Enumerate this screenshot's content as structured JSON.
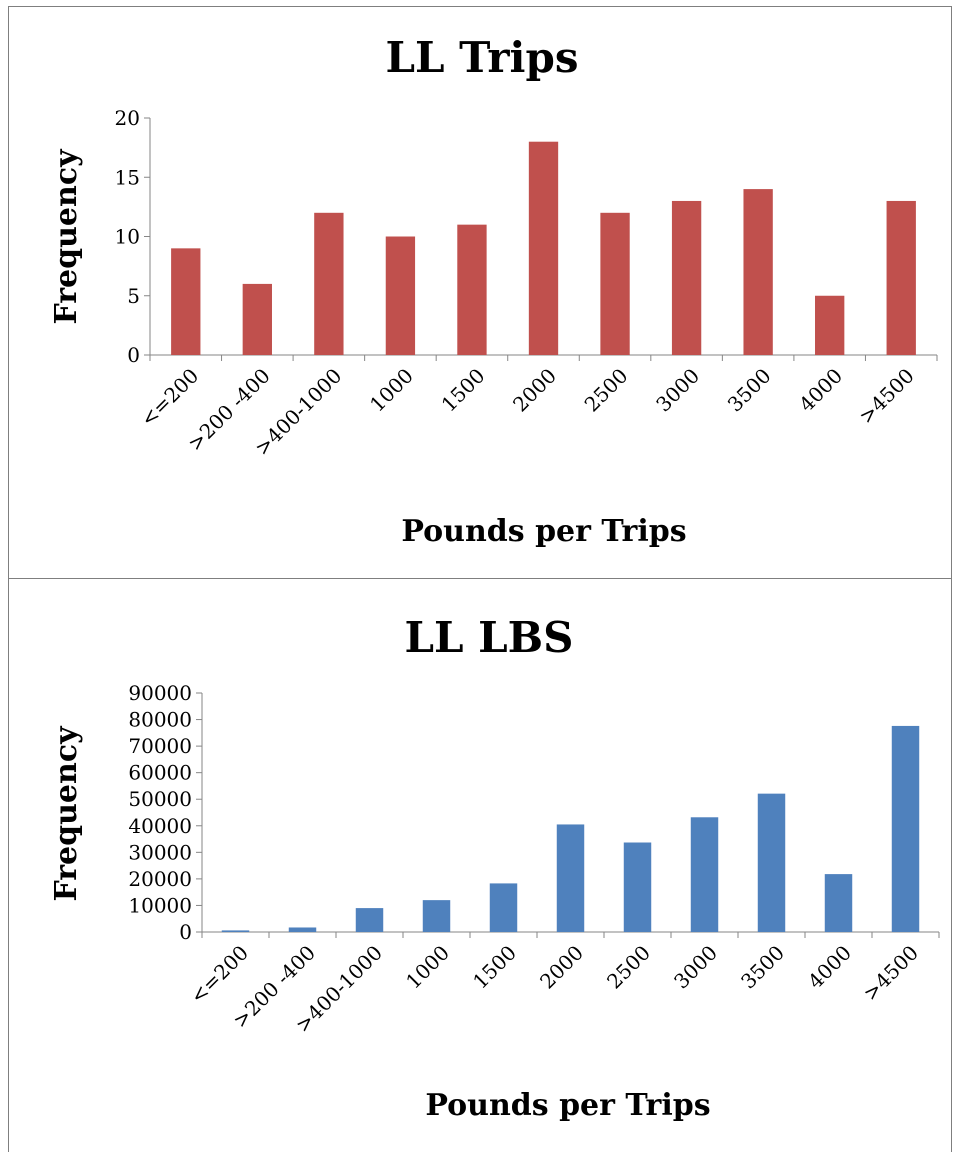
{
  "chart_data": [
    {
      "type": "bar",
      "title": "LL Trips",
      "xlabel": "Pounds per Trips",
      "ylabel": "Frequency",
      "categories": [
        "<=200",
        ">200 -400",
        ">400-1000",
        "1000",
        "1500",
        "2000",
        "2500",
        "3000",
        "3500",
        "4000",
        ">4500"
      ],
      "values": [
        9,
        6,
        12,
        10,
        11,
        18,
        12,
        13,
        14,
        5,
        13
      ],
      "ylim": [
        0,
        20
      ],
      "yticks": [
        0,
        5,
        10,
        15,
        20
      ],
      "color": "#c0504d",
      "grid": false,
      "legend": "none"
    },
    {
      "type": "bar",
      "title": "LL LBS",
      "xlabel": "Pounds per Trips",
      "ylabel": "Frequency",
      "categories": [
        "<=200",
        ">200 -400",
        ">400-1000",
        "1000",
        "1500",
        "2000",
        "2500",
        "3000",
        "3500",
        "4000",
        ">4500"
      ],
      "values": [
        600,
        1700,
        9000,
        12000,
        18300,
        40500,
        33700,
        43200,
        52100,
        21800,
        77600
      ],
      "ylim": [
        0,
        90000
      ],
      "yticks": [
        0,
        10000,
        20000,
        30000,
        40000,
        50000,
        60000,
        70000,
        80000,
        90000
      ],
      "color": "#4f81bd",
      "grid": false,
      "legend": "none"
    }
  ]
}
